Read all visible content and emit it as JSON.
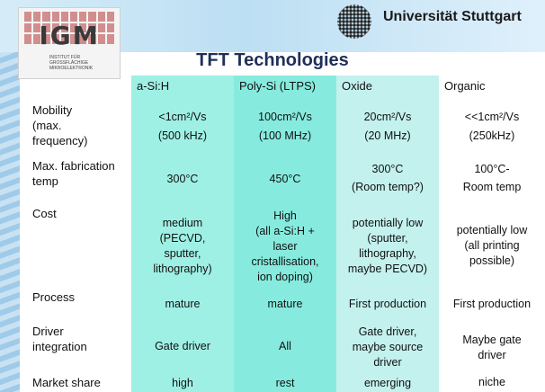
{
  "header": {
    "logo_text": "IGM",
    "logo_subtext": "INSTITUT FÜR GROSSFLÄCHIGE MIKROELEKTRONIK",
    "university": "Universität Stuttgart"
  },
  "title": "TFT Technologies",
  "columns": [
    "a-Si:H",
    "Poly-Si (LTPS)",
    "Oxide",
    "Organic"
  ],
  "rows": [
    {
      "label": [
        "Mobility",
        "(max.",
        "frequency)"
      ],
      "cells": [
        [
          "<1cm²/Vs",
          "(500 kHz)"
        ],
        [
          "100cm²/Vs",
          "(100 MHz)"
        ],
        [
          "20cm²/Vs",
          "(20 MHz)"
        ],
        [
          "<<1cm²/Vs",
          "(250kHz)"
        ]
      ]
    },
    {
      "label": [
        "Max. fabrication",
        "temp"
      ],
      "cells": [
        [
          "300°C"
        ],
        [
          "450°C"
        ],
        [
          "300°C",
          "(Room temp?)"
        ],
        [
          "100°C-",
          "Room temp"
        ]
      ]
    },
    {
      "label": [
        "Cost"
      ],
      "cells": [
        [
          "medium",
          "(PECVD,",
          "sputter,",
          "lithography)"
        ],
        [
          "High",
          "(all a-Si:H +",
          "laser",
          "cristallisation,",
          "ion doping)"
        ],
        [
          "potentially low",
          "(sputter,",
          "lithography,",
          "maybe PECVD)"
        ],
        [
          "potentially low",
          "(all printing",
          "possible)"
        ]
      ]
    },
    {
      "label": [
        "Process"
      ],
      "cells": [
        [
          "mature"
        ],
        [
          "mature"
        ],
        [
          "First production"
        ],
        [
          "First production"
        ]
      ]
    },
    {
      "label": [
        "Driver",
        "integration"
      ],
      "cells": [
        [
          "Gate driver"
        ],
        [
          "All"
        ],
        [
          "Gate driver,",
          "maybe source",
          "driver"
        ],
        [
          "Maybe gate",
          "driver"
        ]
      ]
    },
    {
      "label": [
        "Market share"
      ],
      "cells": [
        [
          "high"
        ],
        [
          "rest"
        ],
        [
          "emerging"
        ],
        [
          "niche"
        ]
      ]
    }
  ],
  "colors": {
    "asi": "#9ff0e4",
    "poly": "#86ebde",
    "oxide": "#c3f1ee",
    "title": "#1f2f5a"
  }
}
